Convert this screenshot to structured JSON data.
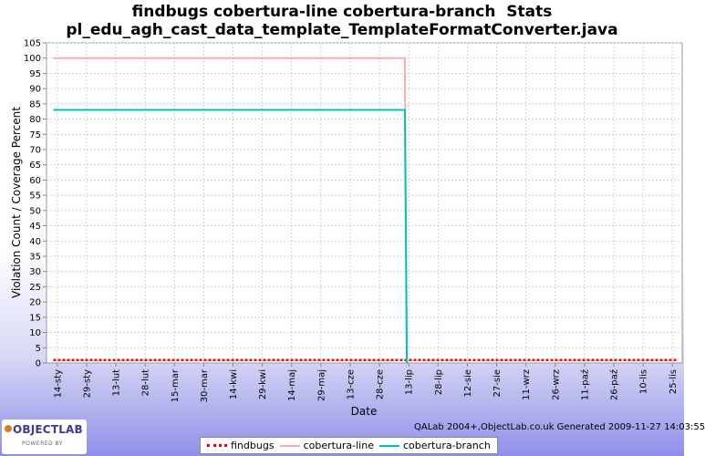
{
  "chart_data": {
    "type": "line",
    "title": "findbugs cobertura-line cobertura-branch  Stats",
    "subtitle": "pl_edu_agh_cast_data_template_TemplateFormatConverter.java",
    "xlabel": "Date",
    "ylabel": "Violation Count / Coverage Percent",
    "ylim": [
      0,
      105
    ],
    "yticks": [
      0,
      5,
      10,
      15,
      20,
      25,
      30,
      35,
      40,
      45,
      50,
      55,
      60,
      65,
      70,
      75,
      80,
      85,
      90,
      95,
      100,
      105
    ],
    "x_dates": [
      "14-sty",
      "29-sty",
      "13-lut",
      "28-lut",
      "15-mar",
      "30-mar",
      "14-kwi",
      "29-kwi",
      "14-maj",
      "29-maj",
      "13-cze",
      "28-cze",
      "13-lip",
      "28-lip",
      "12-sie",
      "27-sie",
      "11-wrz",
      "26-wrz",
      "11-paź",
      "26-paź",
      "10-lis",
      "25-lis"
    ],
    "xlim_days": [
      -5.5,
      320
    ],
    "grid": true,
    "legend_position": "bottom",
    "series": [
      {
        "name": "findbugs",
        "color": "#ff0000",
        "style": "dashed-dots",
        "points": [
          [
            -2,
            1
          ],
          [
            318,
            1
          ]
        ]
      },
      {
        "name": "cobertura-line",
        "color": "#ffaaaa",
        "style": "solid",
        "points": [
          [
            -2,
            100
          ],
          [
            178,
            100
          ],
          [
            179,
            0
          ]
        ]
      },
      {
        "name": "cobertura-branch",
        "color": "#00c0c0",
        "style": "solid",
        "points": [
          [
            -2,
            83
          ],
          [
            178,
            83
          ],
          [
            179,
            0
          ]
        ]
      }
    ]
  },
  "footer_text": "QALab 2004+,ObjectLab.co.uk Generated 2009-11-27 14:03:55",
  "logo": {
    "main": "OBJECTLAB",
    "sub": "POWERED BY"
  }
}
